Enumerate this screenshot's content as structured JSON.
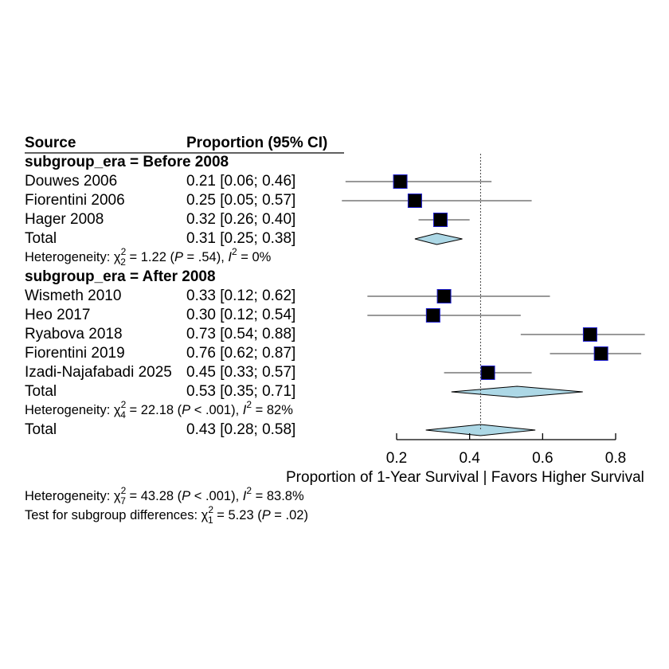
{
  "chart_data": {
    "type": "forest",
    "headers": {
      "source": "Source",
      "estimate": "Proportion (95% CI)"
    },
    "x_axis": {
      "ticks": [
        0.2,
        0.4,
        0.6,
        0.8
      ],
      "tick_labels": [
        "0.2",
        "0.4",
        "0.6",
        "0.8"
      ],
      "range": [
        0.2,
        0.8
      ],
      "label": "Proportion of 1-Year Survival     |     Favors Higher Survival"
    },
    "reference_line": 0.43,
    "subgroups": [
      {
        "title": "subgroup_era = Before 2008",
        "studies": [
          {
            "source": "Douwes 2006",
            "ci_text": "0.21 [0.06; 0.46]",
            "est": 0.21,
            "lo": 0.06,
            "hi": 0.46,
            "weight": 1.0
          },
          {
            "source": "Fiorentini 2006",
            "ci_text": "0.25 [0.05; 0.57]",
            "est": 0.25,
            "lo": 0.05,
            "hi": 0.57,
            "weight": 1.0
          },
          {
            "source": "Hager 2008",
            "ci_text": "0.32 [0.26; 0.40]",
            "est": 0.32,
            "lo": 0.26,
            "hi": 0.4,
            "weight": 1.0
          }
        ],
        "total": {
          "label": "Total",
          "ci_text": "0.31 [0.25; 0.38]",
          "est": 0.31,
          "lo": 0.25,
          "hi": 0.38
        },
        "heterogeneity": {
          "prefix": "Heterogeneity: ",
          "chi": "χ",
          "sup": "2",
          "sub": "2",
          "q": " = 1.22 (",
          "p_letter": "P",
          "p_rest": " = .54), ",
          "i_letter": "I",
          "i_sup": "2",
          "i_rest": " = 0%"
        }
      },
      {
        "title": "subgroup_era = After 2008",
        "studies": [
          {
            "source": "Wismeth 2010",
            "ci_text": "0.33 [0.12; 0.62]",
            "est": 0.33,
            "lo": 0.12,
            "hi": 0.62,
            "weight": 1.0
          },
          {
            "source": "Heo 2017",
            "ci_text": "0.30 [0.12; 0.54]",
            "est": 0.3,
            "lo": 0.12,
            "hi": 0.54,
            "weight": 1.0
          },
          {
            "source": "Ryabova 2018",
            "ci_text": "0.73 [0.54; 0.88]",
            "est": 0.73,
            "lo": 0.54,
            "hi": 0.88,
            "weight": 1.0
          },
          {
            "source": "Fiorentini 2019",
            "ci_text": "0.76 [0.62; 0.87]",
            "est": 0.76,
            "lo": 0.62,
            "hi": 0.87,
            "weight": 1.0
          },
          {
            "source": "Izadi-Najafabadi 2025",
            "ci_text": "0.45 [0.33; 0.57]",
            "est": 0.45,
            "lo": 0.33,
            "hi": 0.57,
            "weight": 1.0
          }
        ],
        "total": {
          "label": "Total",
          "ci_text": "0.53 [0.35; 0.71]",
          "est": 0.53,
          "lo": 0.35,
          "hi": 0.71
        },
        "heterogeneity": {
          "prefix": "Heterogeneity: ",
          "chi": "χ",
          "sup": "2",
          "sub": "4",
          "q": " = 22.18 (",
          "p_letter": "P",
          "p_rest": " < .001), ",
          "i_letter": "I",
          "i_sup": "2",
          "i_rest": " = 82%"
        }
      }
    ],
    "overall": {
      "label": "Total",
      "ci_text": "0.43 [0.28; 0.58]",
      "est": 0.43,
      "lo": 0.28,
      "hi": 0.58
    },
    "overall_heterogeneity": {
      "prefix": "Heterogeneity: ",
      "chi": "χ",
      "sup": "2",
      "sub": "7",
      "q": " = 43.28 (",
      "p_letter": "P",
      "p_rest": " < .001), ",
      "i_letter": "I",
      "i_sup": "2",
      "i_rest": " = 83.8%"
    },
    "subgroup_test": {
      "prefix": "Test for subgroup differences: ",
      "chi": "χ",
      "sup": "2",
      "sub": "1",
      "q": " = 5.23 (",
      "p_letter": "P",
      "p_rest": " = .02)"
    },
    "colors": {
      "square": "#000000",
      "square_border": "#1a1acc",
      "diamond": "#add8e6",
      "line": "#333333"
    }
  }
}
